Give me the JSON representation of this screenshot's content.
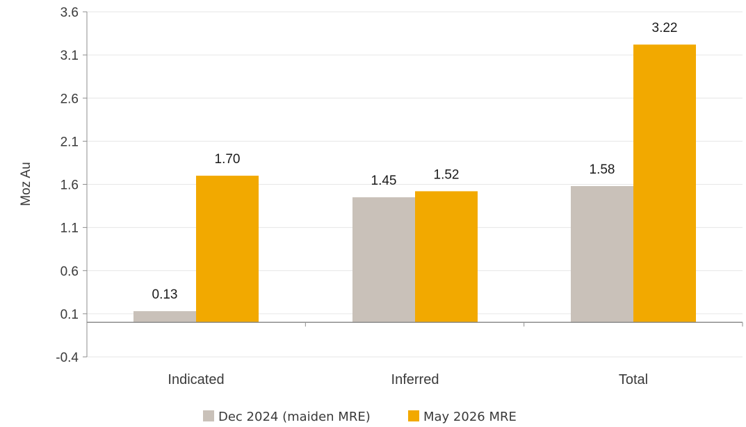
{
  "chart_data": {
    "type": "bar",
    "categories": [
      "Indicated",
      "Inferred",
      "Total"
    ],
    "series": [
      {
        "name": "Dec 2024 (maiden MRE)",
        "values": [
          0.13,
          1.45,
          1.58
        ],
        "color": "#c9c1b9"
      },
      {
        "name": "May 2026 MRE",
        "values": [
          1.7,
          1.52,
          3.22
        ],
        "color": "#f2a900"
      }
    ],
    "value_labels": [
      [
        "0.13",
        "1.45",
        "1.58"
      ],
      [
        "1.70",
        "1.52",
        "3.22"
      ]
    ],
    "ylabel": "Moz Au",
    "xlabel": "",
    "ylim": [
      -0.4,
      3.6
    ],
    "yticks": [
      "3.6",
      "3.1",
      "2.6",
      "2.1",
      "1.6",
      "1.1",
      "0.6",
      "0.1",
      "-0.4"
    ],
    "ytick_values": [
      3.6,
      3.1,
      2.6,
      2.1,
      1.6,
      1.1,
      0.6,
      0.1,
      -0.4
    ],
    "baseline": 0.0,
    "grid": true,
    "legend_position": "bottom"
  }
}
